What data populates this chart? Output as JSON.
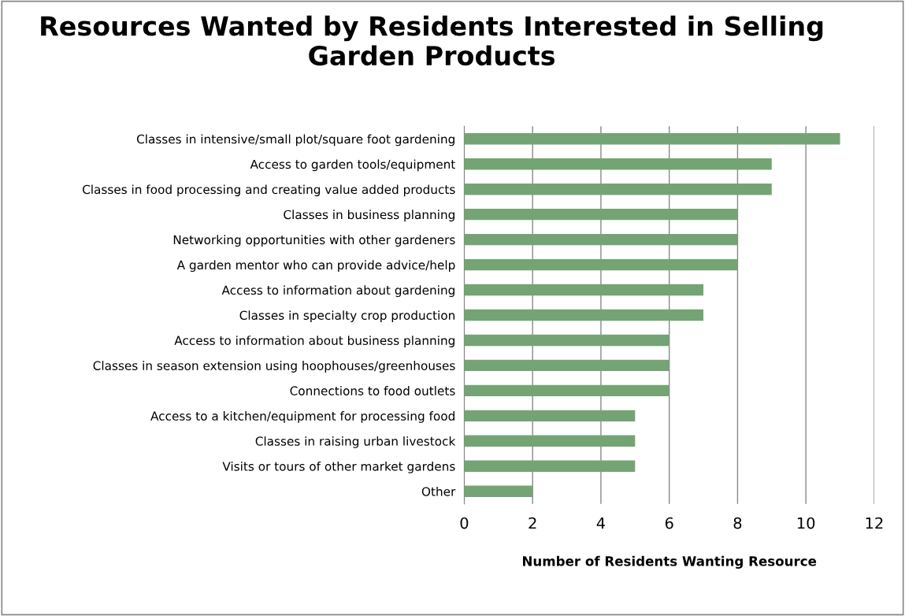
{
  "chart_data": {
    "type": "bar",
    "orientation": "horizontal",
    "title": "Resources Wanted by Residents Interested in Selling Garden Products",
    "xlabel": "Number of Residents Wanting Resource",
    "categories": [
      "Classes in intensive/small plot/square foot gardening",
      "Access to garden tools/equipment",
      "Classes in food processing and creating value added products",
      "Classes in business planning",
      "Networking opportunities with other gardeners",
      "A garden mentor who can provide advice/help",
      "Access to information about gardening",
      "Classes in specialty crop production",
      "Access to information about business planning",
      "Classes in season extension using hoophouses/greenhouses",
      "Connections to food outlets",
      "Access to a kitchen/equipment for processing food",
      "Classes in raising urban livestock",
      "Visits or tours of other market gardens",
      "Other"
    ],
    "values": [
      11,
      9,
      9,
      8,
      8,
      8,
      7,
      7,
      6,
      6,
      6,
      5,
      5,
      5,
      2
    ],
    "color": "#74a474",
    "xlim": [
      0,
      12
    ],
    "xticks": [
      0,
      2,
      4,
      6,
      8,
      10,
      12
    ],
    "grid": "x"
  }
}
